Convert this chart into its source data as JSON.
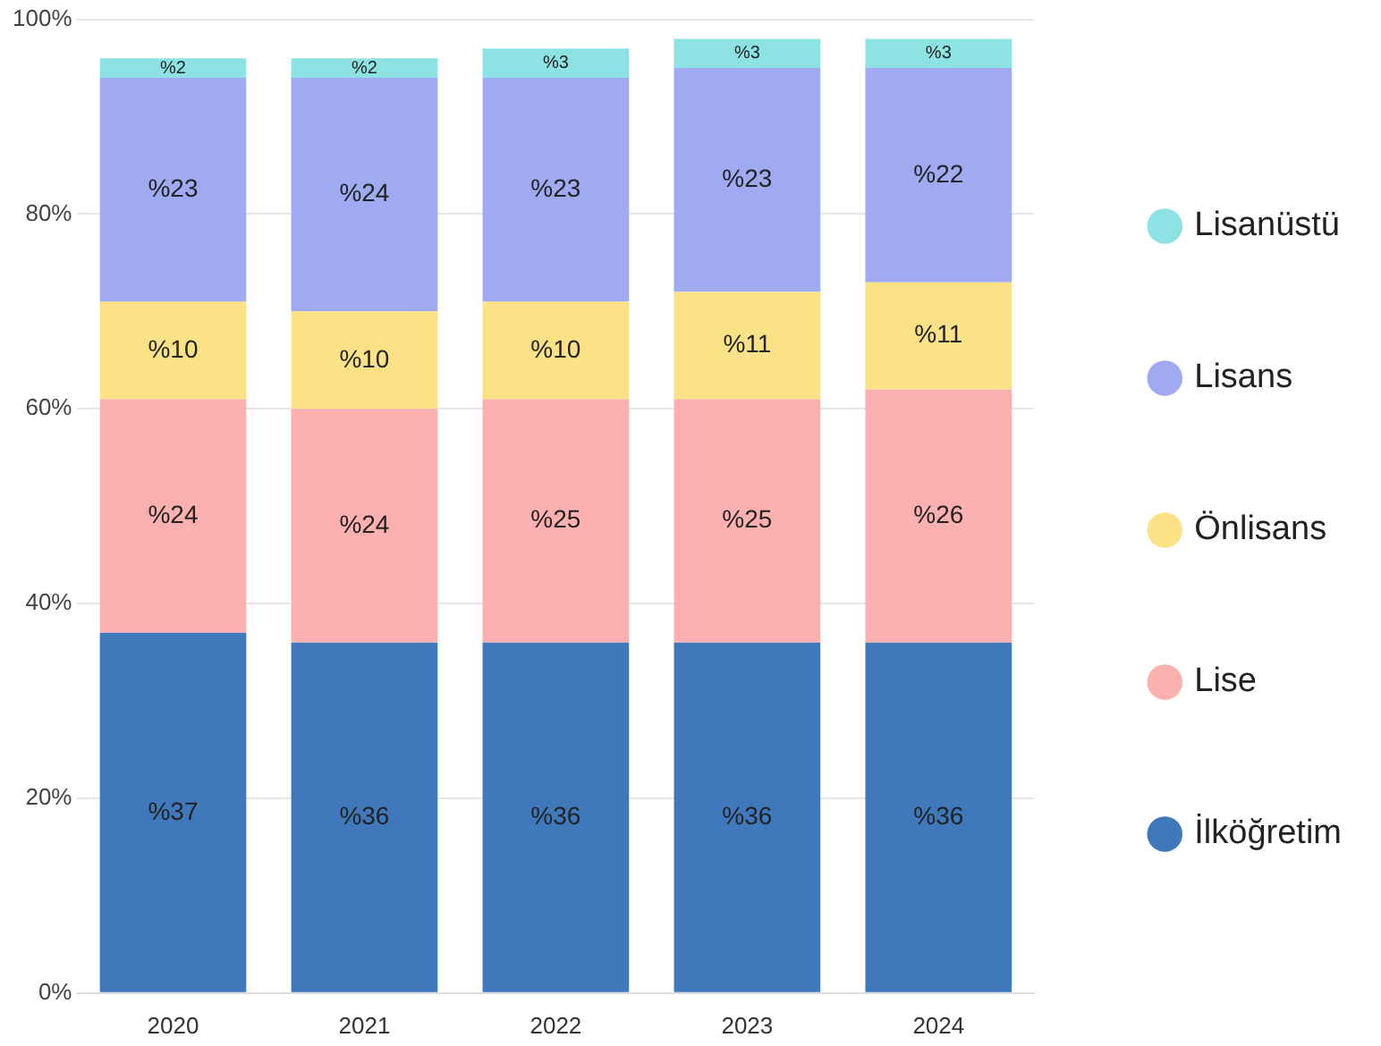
{
  "chart_data": {
    "type": "bar",
    "stacked": true,
    "categories": [
      "2020",
      "2021",
      "2022",
      "2023",
      "2024"
    ],
    "series": [
      {
        "name": "İlköğretim",
        "color": "#3f78bb",
        "values": [
          37,
          36,
          36,
          36,
          36
        ],
        "value_labels": [
          "%37",
          "%36",
          "%36",
          "%36",
          "%36"
        ]
      },
      {
        "name": "Lise",
        "color": "#fdb0b0",
        "values": [
          24,
          24,
          25,
          25,
          26
        ],
        "value_labels": [
          "%24",
          "%24",
          "%25",
          "%25",
          "%26"
        ]
      },
      {
        "name": "Önlisans",
        "color": "#fbe286",
        "values": [
          10,
          10,
          10,
          11,
          11
        ],
        "value_labels": [
          "%10",
          "%10",
          "%10",
          "%11",
          "%11"
        ]
      },
      {
        "name": "Lisans",
        "color": "#a0aaf0",
        "values": [
          23,
          24,
          23,
          23,
          22
        ],
        "value_labels": [
          "%23",
          "%24",
          "%23",
          "%23",
          "%22"
        ]
      },
      {
        "name": "Lisanüstü",
        "color": "#8de3e3",
        "values": [
          2,
          2,
          3,
          3,
          3
        ],
        "value_labels": [
          "%2",
          "%2",
          "%3",
          "%3",
          "%3"
        ]
      }
    ],
    "ylim": [
      0,
      100
    ],
    "yticks": [
      {
        "value": 0,
        "label": "0%"
      },
      {
        "value": 20,
        "label": "20%"
      },
      {
        "value": 40,
        "label": "40%"
      },
      {
        "value": 60,
        "label": "60%"
      },
      {
        "value": 80,
        "label": "80%"
      },
      {
        "value": 100,
        "label": "100%"
      }
    ],
    "grid": "y",
    "legend": "right"
  }
}
